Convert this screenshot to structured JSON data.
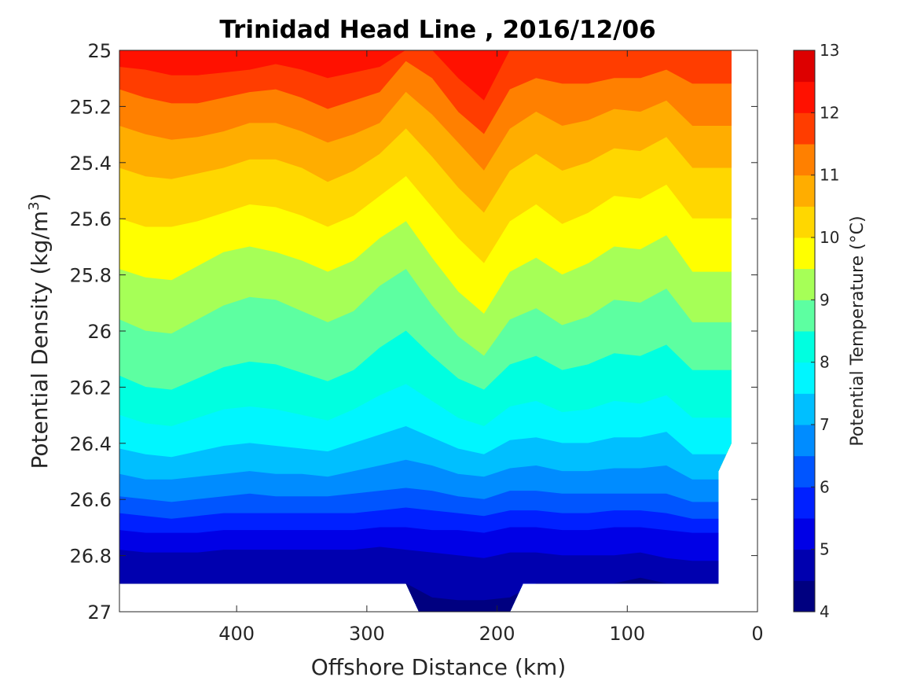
{
  "chart_data": {
    "type": "filled-contour",
    "title": "Trinidad Head Line , 2016/12/06",
    "xlabel": "Offshore Distance (km)",
    "ylabel": "Potential Density (kg/m",
    "ylabel_sup": "3",
    "ylabel_end": ")",
    "xlim": [
      490,
      0
    ],
    "x_reversed": true,
    "ylim": [
      25,
      27
    ],
    "y_reversed": true,
    "x_ticks": [
      400,
      300,
      200,
      100,
      0
    ],
    "x_tick_labels": [
      "400",
      "300",
      "200",
      "100",
      "0"
    ],
    "y_ticks": [
      25,
      25.2,
      25.4,
      25.6,
      25.8,
      26,
      26.2,
      26.4,
      26.6,
      26.8,
      27
    ],
    "y_tick_labels": [
      "25",
      "25.2",
      "25.4",
      "25.6",
      "25.8",
      "26",
      "26.2",
      "26.4",
      "26.6",
      "26.8",
      "27"
    ],
    "colorbar": {
      "label": "Potential Temperature (°C)",
      "range": [
        4,
        13
      ],
      "tick_values": [
        4,
        5,
        6,
        7,
        8,
        9,
        10,
        11,
        12,
        13
      ],
      "tick_labels": [
        "4",
        "5",
        "6",
        "7",
        "8",
        "9",
        "10",
        "11",
        "12",
        "13"
      ],
      "levels": [
        4,
        4.5,
        5,
        5.5,
        6,
        6.5,
        7,
        7.5,
        8,
        8.5,
        9,
        9.5,
        10,
        10.5,
        11,
        11.5,
        12,
        12.5,
        13
      ],
      "colors": [
        "#000080",
        "#0000af",
        "#0000e6",
        "#0020ff",
        "#0055ff",
        "#008cff",
        "#00bfff",
        "#00f6ff",
        "#00ffe0",
        "#5dffa1",
        "#a6ff57",
        "#ffff00",
        "#ffd700",
        "#ffad00",
        "#ff8000",
        "#ff3d00",
        "#ff1100",
        "#dd0000"
      ]
    },
    "x_grid": [
      490,
      470,
      450,
      430,
      410,
      390,
      370,
      350,
      330,
      310,
      290,
      270,
      250,
      230,
      210,
      190,
      170,
      150,
      130,
      110,
      90,
      70,
      50,
      30
    ],
    "isotherm_density": [
      {
        "temperature": 12.5,
        "density": [
          25.0,
          25.0,
          25.0,
          25.0,
          25.0,
          25.0,
          25.0,
          25.0,
          25.0,
          25.0,
          25.0,
          25.0,
          25.0,
          25.0,
          25.0,
          25.0,
          25.0,
          25.0,
          25.0,
          25.0,
          25.0,
          25.0,
          25.0,
          25.0
        ]
      },
      {
        "temperature": 12.0,
        "density": [
          25.06,
          25.07,
          25.09,
          25.09,
          25.08,
          25.07,
          25.05,
          25.07,
          25.1,
          25.08,
          25.06,
          25.0,
          25.0,
          25.1,
          25.18,
          25.0,
          25.0,
          25.0,
          25.0,
          25.0,
          25.0,
          25.0,
          25.0,
          25.0
        ]
      },
      {
        "temperature": 11.5,
        "density": [
          25.14,
          25.17,
          25.19,
          25.19,
          25.17,
          25.15,
          25.14,
          25.17,
          25.21,
          25.18,
          25.15,
          25.04,
          25.1,
          25.22,
          25.3,
          25.14,
          25.1,
          25.12,
          25.12,
          25.1,
          25.1,
          25.07,
          25.12,
          25.12
        ]
      },
      {
        "temperature": 11.0,
        "density": [
          25.27,
          25.3,
          25.32,
          25.31,
          25.29,
          25.26,
          25.26,
          25.29,
          25.33,
          25.3,
          25.26,
          25.15,
          25.23,
          25.33,
          25.43,
          25.28,
          25.22,
          25.27,
          25.25,
          25.21,
          25.22,
          25.18,
          25.27,
          25.27
        ]
      },
      {
        "temperature": 10.5,
        "density": [
          25.42,
          25.45,
          25.46,
          25.44,
          25.42,
          25.39,
          25.39,
          25.42,
          25.47,
          25.43,
          25.37,
          25.28,
          25.38,
          25.49,
          25.58,
          25.43,
          25.37,
          25.43,
          25.4,
          25.35,
          25.36,
          25.31,
          25.42,
          25.42
        ]
      },
      {
        "temperature": 10.0,
        "density": [
          25.6,
          25.63,
          25.63,
          25.61,
          25.58,
          25.55,
          25.56,
          25.59,
          25.63,
          25.59,
          25.52,
          25.45,
          25.56,
          25.67,
          25.76,
          25.61,
          25.55,
          25.62,
          25.58,
          25.52,
          25.53,
          25.48,
          25.6,
          25.6
        ]
      },
      {
        "temperature": 9.5,
        "density": [
          25.78,
          25.81,
          25.82,
          25.77,
          25.72,
          25.7,
          25.72,
          25.75,
          25.79,
          25.75,
          25.67,
          25.61,
          25.74,
          25.86,
          25.94,
          25.79,
          25.74,
          25.8,
          25.76,
          25.7,
          25.71,
          25.66,
          25.79,
          25.79
        ]
      },
      {
        "temperature": 9.0,
        "density": [
          25.96,
          26.0,
          26.01,
          25.96,
          25.91,
          25.88,
          25.89,
          25.93,
          25.97,
          25.93,
          25.84,
          25.78,
          25.91,
          26.02,
          26.09,
          25.96,
          25.92,
          25.98,
          25.95,
          25.89,
          25.9,
          25.85,
          25.97,
          25.97
        ]
      },
      {
        "temperature": 8.5,
        "density": [
          26.16,
          26.2,
          26.21,
          26.17,
          26.13,
          26.11,
          26.12,
          26.15,
          26.18,
          26.14,
          26.06,
          26.0,
          26.09,
          26.17,
          26.21,
          26.12,
          26.09,
          26.14,
          26.12,
          26.08,
          26.09,
          26.05,
          26.14,
          26.14
        ]
      },
      {
        "temperature": 8.0,
        "density": [
          26.3,
          26.33,
          26.34,
          26.31,
          26.28,
          26.27,
          26.28,
          26.3,
          26.32,
          26.28,
          26.23,
          26.19,
          26.25,
          26.31,
          26.34,
          26.27,
          26.25,
          26.29,
          26.28,
          26.25,
          26.26,
          26.23,
          26.31,
          26.31
        ]
      },
      {
        "temperature": 7.5,
        "density": [
          26.42,
          26.44,
          26.45,
          26.43,
          26.41,
          26.4,
          26.41,
          26.42,
          26.43,
          26.4,
          26.37,
          26.34,
          26.38,
          26.42,
          26.44,
          26.39,
          26.38,
          26.4,
          26.4,
          26.38,
          26.38,
          26.36,
          26.44,
          26.44
        ]
      },
      {
        "temperature": 7.0,
        "density": [
          26.51,
          26.53,
          26.53,
          26.52,
          26.51,
          26.5,
          26.51,
          26.51,
          26.52,
          26.5,
          26.48,
          26.46,
          26.48,
          26.51,
          26.52,
          26.49,
          26.48,
          26.5,
          26.5,
          26.49,
          26.49,
          26.48,
          26.53,
          26.53
        ]
      },
      {
        "temperature": 6.5,
        "density": [
          26.59,
          26.6,
          26.61,
          26.6,
          26.59,
          26.58,
          26.59,
          26.59,
          26.59,
          26.58,
          26.57,
          26.56,
          26.57,
          26.59,
          26.6,
          26.57,
          26.57,
          26.58,
          26.58,
          26.58,
          26.58,
          26.58,
          26.61,
          26.61
        ]
      },
      {
        "temperature": 6.0,
        "density": [
          26.65,
          26.66,
          26.67,
          26.66,
          26.65,
          26.65,
          26.65,
          26.65,
          26.65,
          26.65,
          26.64,
          26.63,
          26.64,
          26.65,
          26.66,
          26.64,
          26.64,
          26.65,
          26.65,
          26.64,
          26.64,
          26.65,
          26.67,
          26.67
        ]
      },
      {
        "temperature": 5.5,
        "density": [
          26.71,
          26.72,
          26.72,
          26.72,
          26.71,
          26.71,
          26.71,
          26.71,
          26.71,
          26.71,
          26.7,
          26.7,
          26.71,
          26.71,
          26.72,
          26.7,
          26.7,
          26.71,
          26.71,
          26.7,
          26.7,
          26.71,
          26.72,
          26.72
        ]
      },
      {
        "temperature": 5.0,
        "density": [
          26.78,
          26.79,
          26.79,
          26.79,
          26.78,
          26.78,
          26.78,
          26.78,
          26.78,
          26.78,
          26.77,
          26.78,
          26.79,
          26.8,
          26.81,
          26.79,
          26.79,
          26.8,
          26.8,
          26.8,
          26.79,
          26.81,
          26.82,
          26.82
        ]
      },
      {
        "temperature": 4.5,
        "density": [
          26.9,
          26.9,
          26.9,
          26.9,
          26.9,
          26.9,
          26.9,
          26.9,
          26.9,
          26.9,
          26.9,
          26.9,
          26.95,
          26.96,
          26.96,
          26.95,
          26.9,
          26.9,
          26.9,
          26.9,
          26.88,
          26.9,
          26.9,
          26.9
        ]
      }
    ],
    "data_outline": [
      [
        490,
        25
      ],
      [
        20,
        25
      ],
      [
        20,
        26.4
      ],
      [
        30,
        26.5
      ],
      [
        30,
        26.9
      ],
      [
        180,
        26.9
      ],
      [
        190,
        27
      ],
      [
        260,
        27
      ],
      [
        270,
        26.9
      ],
      [
        490,
        26.9
      ]
    ]
  }
}
